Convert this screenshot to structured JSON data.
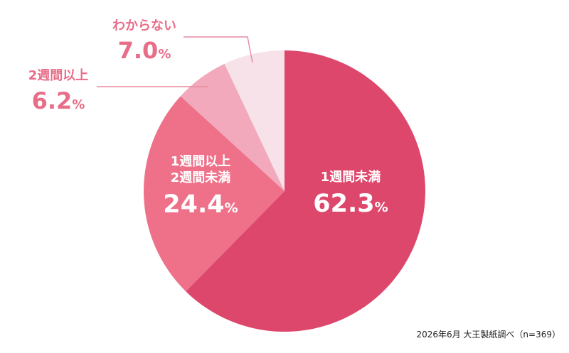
{
  "chart_data": {
    "type": "pie",
    "title": "",
    "start_angle_deg": 0,
    "direction": "clockwise",
    "slices": [
      {
        "label_lines": [
          "1週間未満"
        ],
        "value": 62.3,
        "value_text": "62.3",
        "unit": "%",
        "color": "#de476c",
        "label_color": "#ffffff",
        "label_position": "inside"
      },
      {
        "label_lines": [
          "1週間以上",
          "2週間未満"
        ],
        "value": 24.4,
        "value_text": "24.4",
        "unit": "%",
        "color": "#ee7189",
        "label_color": "#ffffff",
        "label_position": "inside"
      },
      {
        "label_lines": [
          "2週間以上"
        ],
        "value": 6.2,
        "value_text": "6.2",
        "unit": "%",
        "color": "#f1a9bb",
        "label_color": "#e76d88",
        "label_position": "outside-left"
      },
      {
        "label_lines": [
          "わからない"
        ],
        "value": 7.0,
        "value_text": "7.0",
        "unit": "%",
        "color": "#f6e2e8",
        "label_color": "#e76d88",
        "label_position": "outside-top"
      }
    ]
  },
  "source_note": "2026年6月 大王製紙調べ（n=369）"
}
